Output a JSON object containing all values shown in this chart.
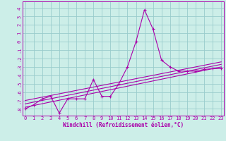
{
  "xlabel": "Windchill (Refroidissement éolien,°C)",
  "bg_color": "#cceee8",
  "grid_color": "#99cccc",
  "line_color": "#aa00aa",
  "spine_color": "#aa00aa",
  "x_ticks": [
    0,
    1,
    2,
    3,
    4,
    5,
    6,
    7,
    8,
    9,
    10,
    11,
    12,
    13,
    14,
    15,
    16,
    17,
    18,
    19,
    20,
    21,
    22,
    23
  ],
  "y_ticks": [
    4,
    3,
    2,
    1,
    0,
    -1,
    -2,
    -3,
    -4,
    -5,
    -6,
    -7,
    -8
  ],
  "xlim": [
    -0.3,
    23.3
  ],
  "ylim": [
    -8.8,
    4.8
  ],
  "series1_x": [
    0,
    1,
    2,
    3,
    4,
    5,
    6,
    7,
    8,
    9,
    10,
    11,
    12,
    13,
    14,
    15,
    16,
    17,
    18,
    19,
    20,
    21,
    22,
    23
  ],
  "series1_y": [
    -8.0,
    -7.5,
    -6.8,
    -6.5,
    -8.5,
    -6.8,
    -6.8,
    -6.8,
    -4.5,
    -6.5,
    -6.5,
    -5.0,
    -3.0,
    0.0,
    3.8,
    1.5,
    -2.2,
    -3.0,
    -3.5,
    -3.5,
    -3.5,
    -3.3,
    -3.2,
    -3.2
  ],
  "series2_x": [
    0,
    23
  ],
  "series2_y": [
    -7.8,
    -3.0
  ],
  "series3_x": [
    0,
    23
  ],
  "series3_y": [
    -7.4,
    -2.7
  ],
  "series4_x": [
    0,
    23
  ],
  "series4_y": [
    -7.0,
    -2.4
  ],
  "tick_fontsize": 5.0,
  "xlabel_fontsize": 5.5
}
